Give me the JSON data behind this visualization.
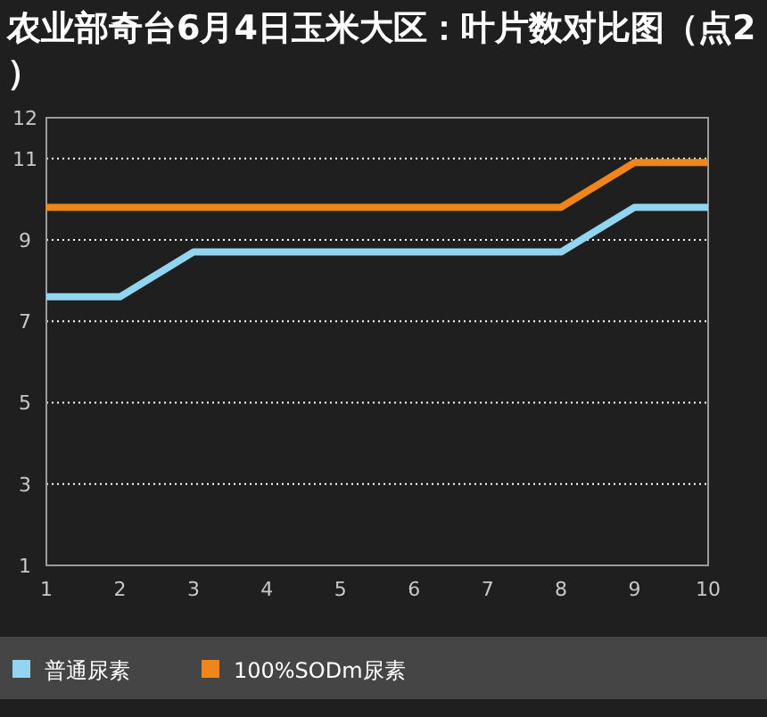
{
  "chart_data": {
    "type": "line",
    "title": "农业部奇台6月4日玉米大区：叶片数对比图（点2）",
    "x": [
      1,
      2,
      3,
      4,
      5,
      6,
      7,
      8,
      9,
      10
    ],
    "series": [
      {
        "name": "普通尿素",
        "color": "#92d5f0",
        "values": [
          7.6,
          7.6,
          8.7,
          8.7,
          8.7,
          8.7,
          8.7,
          8.7,
          9.8,
          9.8
        ]
      },
      {
        "name": "100%SODm尿素",
        "color": "#f0861a",
        "values": [
          9.8,
          9.8,
          9.8,
          9.8,
          9.8,
          9.8,
          9.8,
          9.8,
          10.9,
          10.9
        ]
      }
    ],
    "xlim": [
      1,
      10
    ],
    "xticks": [
      1,
      2,
      3,
      4,
      5,
      6,
      7,
      8,
      9,
      10
    ],
    "ylim": [
      1,
      12
    ],
    "yticks": [
      1,
      3,
      5,
      7,
      9,
      11,
      12
    ],
    "grid": "y",
    "legend": "bottom",
    "marker": "none",
    "line_style": "solid"
  }
}
